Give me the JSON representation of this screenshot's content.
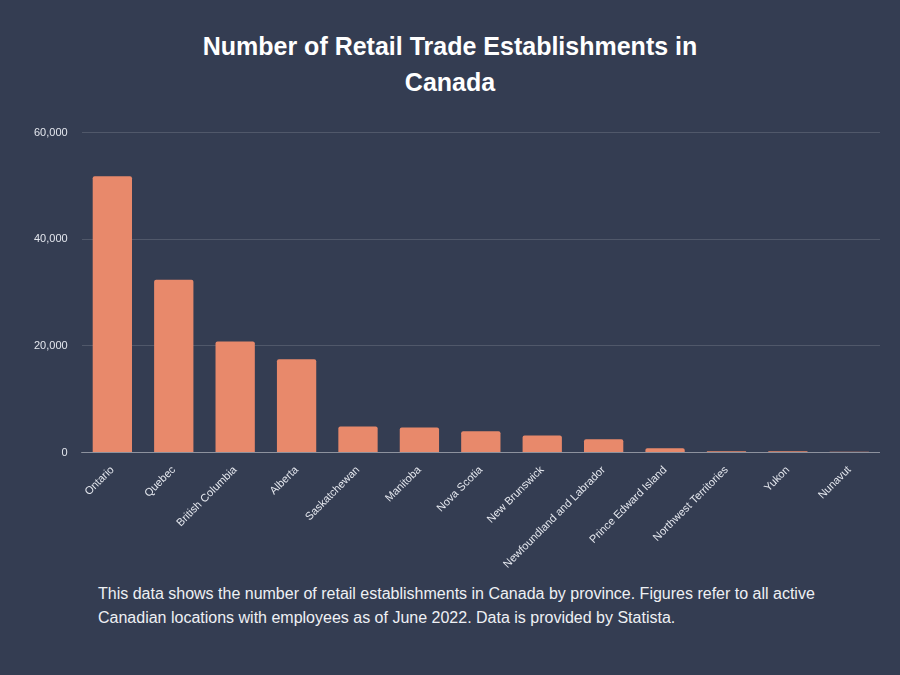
{
  "chart_data": {
    "type": "bar",
    "title": "Number of Retail Trade Establishments in Canada",
    "caption": "This data shows the number of retail establishments in Canada by province. Figures refer to all active Canadian locations with employees as of June 2022. Data is provided by Statista.",
    "categories": [
      "Ontario",
      "Quebec",
      "British Columbia",
      "Alberta",
      "Saskatchewan",
      "Manitoba",
      "Nova Scotia",
      "New Brunswick",
      "Newfoundland and Labrador",
      "Prince Edward Island",
      "Northwest Territories",
      "Yukon",
      "Nunavut"
    ],
    "values": [
      51800,
      32400,
      20800,
      17500,
      4900,
      4700,
      4000,
      3200,
      2500,
      800,
      250,
      250,
      120
    ],
    "color": "#e8896b",
    "ylim": [
      0,
      60000
    ],
    "yticks": [
      0,
      {
        "value": 20000,
        "label": "20,000"
      },
      {
        "value": 40000,
        "label": "40,000"
      },
      {
        "value": 60000,
        "label": "60,000"
      }
    ],
    "grid": true
  }
}
